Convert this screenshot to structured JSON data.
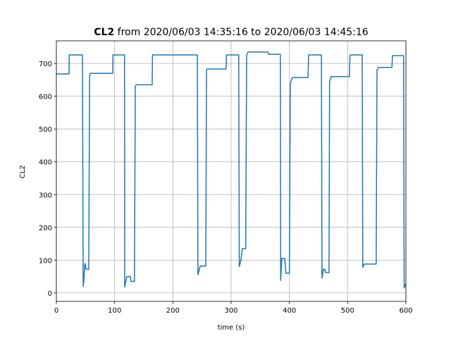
{
  "chart_data": {
    "type": "line",
    "title_bold": "CL2",
    "title": "from 2020/06/03 14:35:16 to 2020/06/03 14:45:16",
    "xlabel": "time (s)",
    "ylabel": "CL2",
    "color": "#1f77b4",
    "x": [
      0,
      21.8,
      22,
      44.8,
      46,
      47,
      49,
      51,
      52,
      55.6,
      57,
      58,
      96.8,
      97,
      117,
      117.3,
      121,
      127,
      128,
      134,
      135.5,
      137,
      164.5,
      165,
      242,
      243,
      247,
      256.5,
      257.7,
      259,
      291.5,
      292,
      313,
      314,
      317,
      319,
      325,
      326.6,
      329,
      363,
      364,
      384.6,
      385,
      387,
      392,
      394,
      400,
      401.6,
      405,
      432,
      433,
      455,
      456,
      458.5,
      461,
      462,
      468,
      469,
      472,
      503,
      504,
      525,
      526,
      528.6,
      549,
      550.4,
      553,
      576,
      577,
      596,
      597,
      599,
      600
    ],
    "values": [
      668,
      668,
      726,
      726,
      20,
      35,
      90,
      72,
      72,
      72,
      660,
      670,
      670,
      726,
      726,
      18,
      50,
      50,
      35,
      35,
      630,
      635,
      635,
      726,
      726,
      55,
      82,
      82,
      680,
      683,
      683,
      726,
      726,
      80,
      100,
      135,
      135,
      726,
      735,
      735,
      728,
      728,
      38,
      105,
      105,
      60,
      60,
      640,
      657,
      657,
      726,
      726,
      45,
      72,
      72,
      62,
      62,
      645,
      660,
      660,
      726,
      726,
      78,
      88,
      88,
      680,
      688,
      688,
      724,
      724,
      15,
      25,
      25
    ],
    "xlim": [
      0,
      600
    ],
    "ylim": [
      -26,
      769
    ],
    "xticks": [
      0,
      100,
      200,
      300,
      400,
      500,
      600
    ],
    "yticks": [
      0,
      100,
      200,
      300,
      400,
      500,
      600,
      700
    ],
    "grid": true
  }
}
